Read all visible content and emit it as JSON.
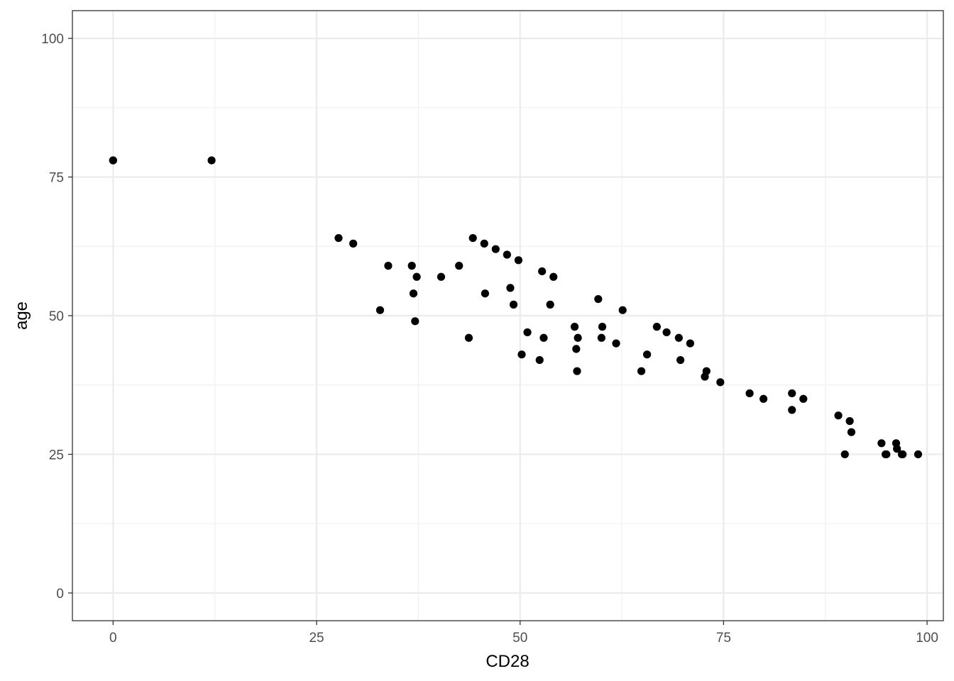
{
  "chart_data": {
    "type": "scatter",
    "xlabel": "CD28",
    "ylabel": "age",
    "xlim": [
      -5,
      102
    ],
    "ylim": [
      -5,
      105
    ],
    "x_ticks": [
      0,
      25,
      50,
      75,
      100
    ],
    "y_ticks": [
      0,
      25,
      50,
      75,
      100
    ],
    "x_tick_labels": [
      "0",
      "25",
      "50",
      "75",
      "100"
    ],
    "y_tick_labels": [
      "0",
      "25",
      "50",
      "75",
      "100"
    ],
    "grid": true,
    "legend": "none",
    "point_color": "#000000",
    "points": [
      {
        "x": 0,
        "y": 78
      },
      {
        "x": 0,
        "y": 78
      },
      {
        "x": 12.1,
        "y": 78
      },
      {
        "x": 27.7,
        "y": 64
      },
      {
        "x": 29.5,
        "y": 63
      },
      {
        "x": 32.8,
        "y": 51
      },
      {
        "x": 33.8,
        "y": 59
      },
      {
        "x": 36.7,
        "y": 59
      },
      {
        "x": 36.9,
        "y": 54
      },
      {
        "x": 37.1,
        "y": 49
      },
      {
        "x": 37.3,
        "y": 57
      },
      {
        "x": 40.3,
        "y": 57
      },
      {
        "x": 42.5,
        "y": 59
      },
      {
        "x": 43.7,
        "y": 46
      },
      {
        "x": 44.2,
        "y": 64
      },
      {
        "x": 45.6,
        "y": 63
      },
      {
        "x": 45.7,
        "y": 54
      },
      {
        "x": 47.0,
        "y": 62
      },
      {
        "x": 48.4,
        "y": 61
      },
      {
        "x": 48.8,
        "y": 55
      },
      {
        "x": 49.2,
        "y": 52
      },
      {
        "x": 49.8,
        "y": 60
      },
      {
        "x": 50.2,
        "y": 43
      },
      {
        "x": 50.9,
        "y": 47
      },
      {
        "x": 52.4,
        "y": 42
      },
      {
        "x": 52.7,
        "y": 58
      },
      {
        "x": 52.9,
        "y": 46
      },
      {
        "x": 53.7,
        "y": 52
      },
      {
        "x": 54.1,
        "y": 57
      },
      {
        "x": 56.7,
        "y": 48
      },
      {
        "x": 56.9,
        "y": 44
      },
      {
        "x": 57.0,
        "y": 40
      },
      {
        "x": 57.1,
        "y": 46
      },
      {
        "x": 59.6,
        "y": 53
      },
      {
        "x": 60.0,
        "y": 46
      },
      {
        "x": 60.1,
        "y": 48
      },
      {
        "x": 61.8,
        "y": 45
      },
      {
        "x": 62.6,
        "y": 51
      },
      {
        "x": 64.9,
        "y": 40
      },
      {
        "x": 65.6,
        "y": 43
      },
      {
        "x": 66.8,
        "y": 48
      },
      {
        "x": 68.0,
        "y": 47
      },
      {
        "x": 69.5,
        "y": 46
      },
      {
        "x": 69.7,
        "y": 42
      },
      {
        "x": 70.9,
        "y": 45
      },
      {
        "x": 72.7,
        "y": 39
      },
      {
        "x": 72.9,
        "y": 40
      },
      {
        "x": 74.6,
        "y": 38
      },
      {
        "x": 78.2,
        "y": 36
      },
      {
        "x": 79.9,
        "y": 35
      },
      {
        "x": 83.4,
        "y": 36
      },
      {
        "x": 83.4,
        "y": 33
      },
      {
        "x": 84.8,
        "y": 35
      },
      {
        "x": 89.1,
        "y": 32
      },
      {
        "x": 89.9,
        "y": 25
      },
      {
        "x": 90.5,
        "y": 31
      },
      {
        "x": 90.7,
        "y": 29
      },
      {
        "x": 94.4,
        "y": 27
      },
      {
        "x": 94.9,
        "y": 25
      },
      {
        "x": 95.0,
        "y": 25
      },
      {
        "x": 96.2,
        "y": 27
      },
      {
        "x": 96.3,
        "y": 26
      },
      {
        "x": 96.9,
        "y": 25
      },
      {
        "x": 97.0,
        "y": 25
      },
      {
        "x": 98.9,
        "y": 25
      }
    ]
  }
}
